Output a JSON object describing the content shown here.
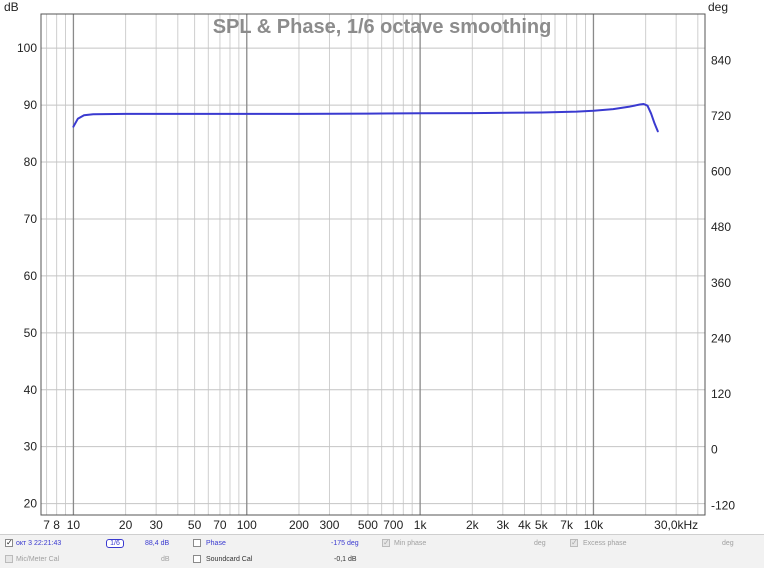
{
  "chart_data": {
    "type": "line",
    "title": "SPL & Phase, 1/6 octave smoothing",
    "y_unit_left": "dB",
    "y_unit_right": "deg",
    "x_unit_suffix": "kHz",
    "x_scale": "log",
    "xlim": [
      6.5,
      44000
    ],
    "ylim": [
      18,
      106
    ],
    "y2lim": [
      -141,
      940
    ],
    "grid": true,
    "x_ticks": [
      {
        "value": 7,
        "label": "7"
      },
      {
        "value": 8,
        "label": "8"
      },
      {
        "value": 10,
        "label": "10"
      },
      {
        "value": 20,
        "label": "20"
      },
      {
        "value": 30,
        "label": "30"
      },
      {
        "value": 50,
        "label": "50"
      },
      {
        "value": 70,
        "label": "70"
      },
      {
        "value": 100,
        "label": "100"
      },
      {
        "value": 200,
        "label": "200"
      },
      {
        "value": 300,
        "label": "300"
      },
      {
        "value": 500,
        "label": "500"
      },
      {
        "value": 700,
        "label": "700"
      },
      {
        "value": 1000,
        "label": "1k"
      },
      {
        "value": 2000,
        "label": "2k"
      },
      {
        "value": 3000,
        "label": "3k"
      },
      {
        "value": 4000,
        "label": "4k"
      },
      {
        "value": 5000,
        "label": "5k"
      },
      {
        "value": 7000,
        "label": "7k"
      },
      {
        "value": 10000,
        "label": "10k"
      },
      {
        "value": 30000,
        "label": "30,0kHz"
      }
    ],
    "y_ticks": [
      20,
      30,
      40,
      50,
      60,
      70,
      80,
      90,
      100
    ],
    "y2_ticks": [
      -120,
      0,
      120,
      240,
      360,
      480,
      600,
      720,
      840
    ],
    "series": [
      {
        "color": "#3a3ad0",
        "x": [
          10,
          10.6,
          11.5,
          13,
          20,
          50,
          100,
          200,
          500,
          1000,
          2000,
          5000,
          8000,
          10000,
          13000,
          16000,
          18500,
          19500,
          20500,
          21500,
          22500,
          23500
        ],
        "y": [
          86.2,
          87.6,
          88.2,
          88.4,
          88.45,
          88.45,
          88.45,
          88.45,
          88.5,
          88.55,
          88.6,
          88.7,
          88.85,
          89.0,
          89.3,
          89.7,
          90.1,
          90.2,
          89.9,
          88.5,
          86.8,
          85.4
        ]
      }
    ]
  },
  "legend": {
    "row1": {
      "measurement_label": "окт 3 22:21:43",
      "smoothing": "1/6",
      "spl_value": "88,4 dB",
      "phase_label": "Phase",
      "phase_value": "-175 deg",
      "min_phase_label": "Min phase",
      "min_phase_unit": "deg",
      "excess_phase_label": "Excess phase",
      "excess_phase_unit": "deg"
    },
    "row2": {
      "mic_cal_label": "Mic/Meter Cal",
      "mic_cal_unit": "dB",
      "soundcard_cal_label": "Soundcard Cal",
      "soundcard_cal_value": "-0,1 dB"
    }
  }
}
